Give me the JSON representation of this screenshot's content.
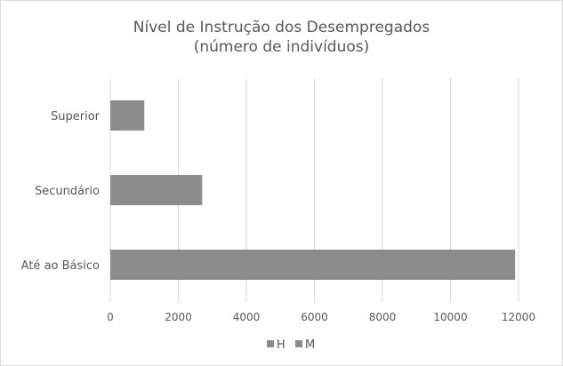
{
  "chart_data": {
    "type": "bar",
    "orientation": "horizontal",
    "title_line1": "Nível de Instrução dos Desempregados",
    "title_line2": "(número de indivíduos)",
    "categories": [
      "Superior",
      "Secundário",
      "Até ao Básico"
    ],
    "series": [
      {
        "name": "H",
        "values": [
          1000,
          2700,
          11900
        ],
        "color": "#8c8c8c"
      },
      {
        "name": "M",
        "values": [
          0,
          0,
          0
        ],
        "color": "#8c8c8c"
      }
    ],
    "xlim": [
      0,
      12000
    ],
    "x_ticks": [
      "0",
      "2000",
      "4000",
      "6000",
      "8000",
      "10000",
      "12000"
    ],
    "grid": true,
    "legend_position": "bottom",
    "legend_entries": [
      "H",
      "M"
    ]
  }
}
